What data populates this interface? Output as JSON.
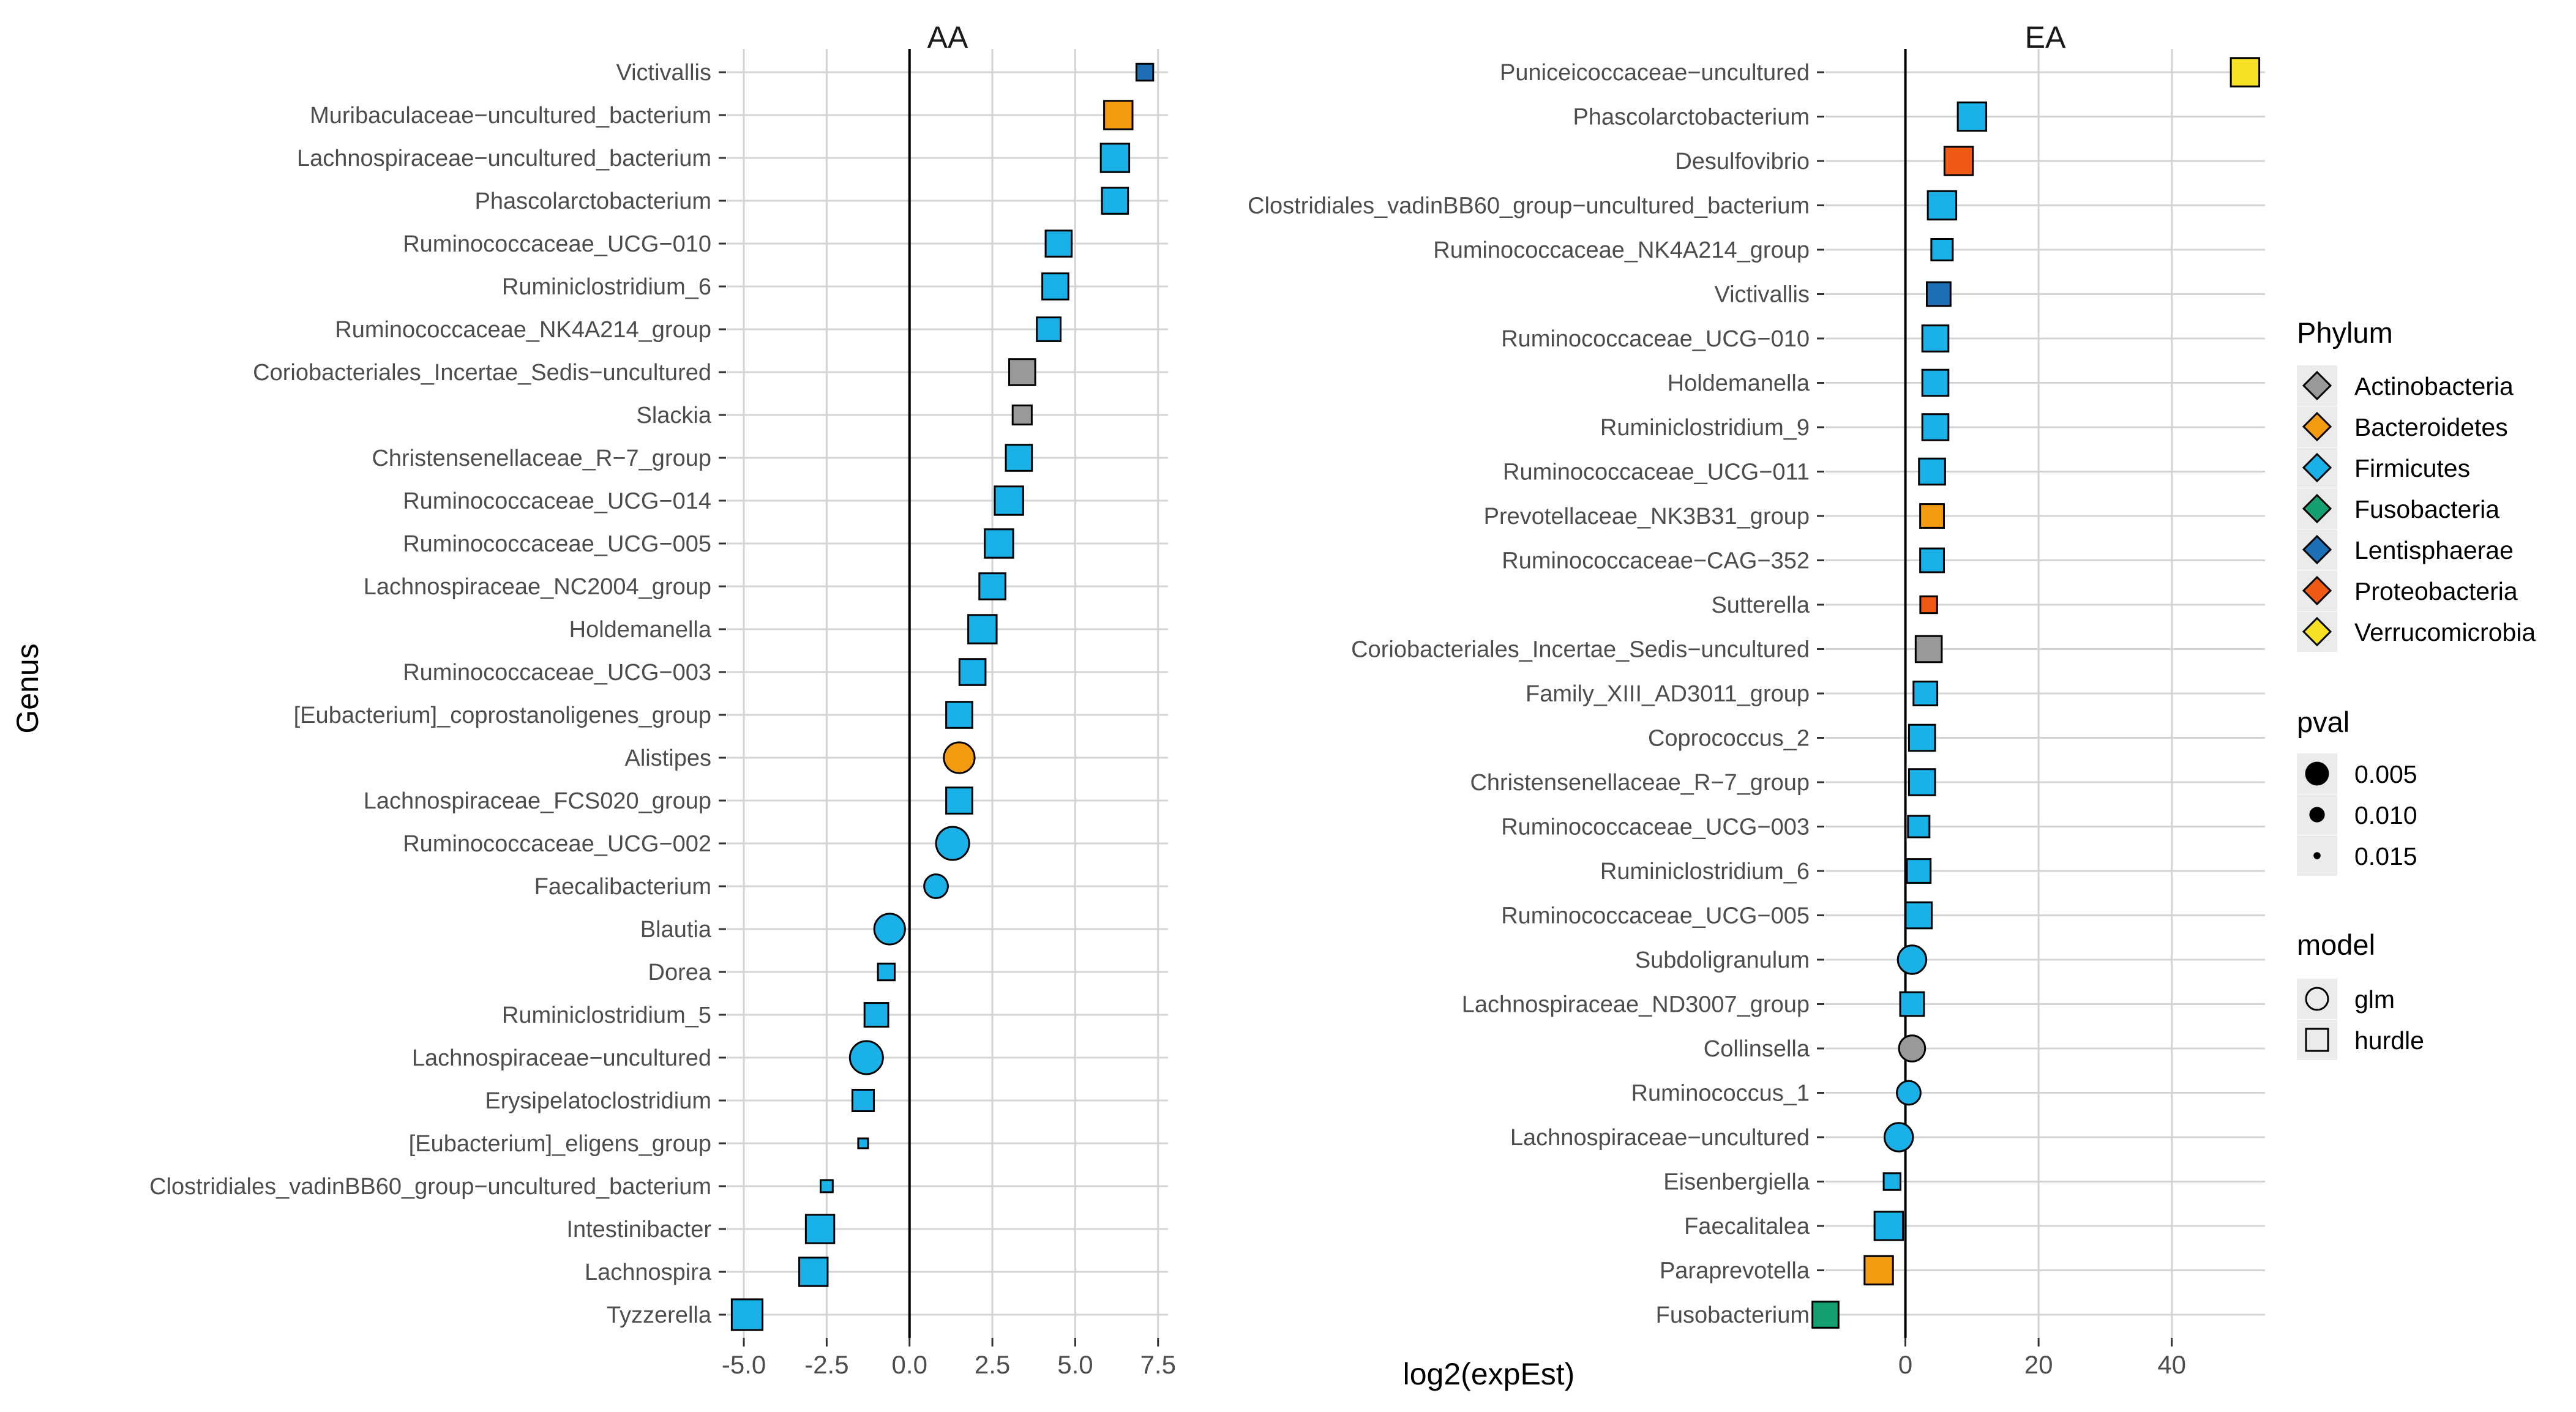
{
  "x_axis_title": "log2(expEst)",
  "y_axis_title": "Genus",
  "colors": {
    "Actinobacteria": "#999999",
    "Bacteroidetes": "#F39C12",
    "Firmicutes": "#1AB0E8",
    "Fusobacteria": "#16A070",
    "Lentisphaerae": "#1F6FB5",
    "Proteobacteria": "#F05A14",
    "Verrucomicrobia": "#F7E125"
  },
  "legend": {
    "phylum_title": "Phylum",
    "phylum_items": [
      "Actinobacteria",
      "Bacteroidetes",
      "Firmicutes",
      "Fusobacteria",
      "Lentisphaerae",
      "Proteobacteria",
      "Verrucomicrobia"
    ],
    "pval_title": "pval",
    "pval_items": [
      "0.005",
      "0.010",
      "0.015"
    ],
    "model_title": "model",
    "model_items": [
      "glm",
      "hurdle"
    ]
  },
  "chart_data": [
    {
      "type": "scatter",
      "title": "AA",
      "xlabel": "log2(expEst)",
      "ylabel": "Genus",
      "xlim": [
        -5.5,
        7.8
      ],
      "xticks": [
        "-5.0",
        "-2.5",
        "0.0",
        "2.5",
        "5.0",
        "7.5"
      ],
      "xtick_values": [
        -5,
        -2.5,
        0,
        2.5,
        5,
        7.5
      ],
      "grid": true,
      "points": [
        {
          "genus": "Victivallis",
          "x": 7.1,
          "phylum": "Lentisphaerae",
          "model": "hurdle",
          "pval": 0.012
        },
        {
          "genus": "Muribaculaceae−uncultured_bacterium",
          "x": 6.3,
          "phylum": "Bacteroidetes",
          "model": "hurdle",
          "pval": 0.007
        },
        {
          "genus": "Lachnospiraceae−uncultured_bacterium",
          "x": 6.2,
          "phylum": "Firmicutes",
          "model": "hurdle",
          "pval": 0.007
        },
        {
          "genus": "Phascolarctobacterium",
          "x": 6.2,
          "phylum": "Firmicutes",
          "model": "hurdle",
          "pval": 0.008
        },
        {
          "genus": "Ruminococcaceae_UCG−010",
          "x": 4.5,
          "phylum": "Firmicutes",
          "model": "hurdle",
          "pval": 0.008
        },
        {
          "genus": "Ruminiclostridium_6",
          "x": 4.4,
          "phylum": "Firmicutes",
          "model": "hurdle",
          "pval": 0.008
        },
        {
          "genus": "Ruminococcaceae_NK4A214_group",
          "x": 4.2,
          "phylum": "Firmicutes",
          "model": "hurdle",
          "pval": 0.009
        },
        {
          "genus": "Coriobacteriales_Incertae_Sedis−uncultured",
          "x": 3.4,
          "phylum": "Actinobacteria",
          "model": "hurdle",
          "pval": 0.008
        },
        {
          "genus": "Slackia",
          "x": 3.4,
          "phylum": "Actinobacteria",
          "model": "hurdle",
          "pval": 0.011
        },
        {
          "genus": "Christensenellaceae_R−7_group",
          "x": 3.3,
          "phylum": "Firmicutes",
          "model": "hurdle",
          "pval": 0.008
        },
        {
          "genus": "Ruminococcaceae_UCG−014",
          "x": 3.0,
          "phylum": "Firmicutes",
          "model": "hurdle",
          "pval": 0.007
        },
        {
          "genus": "Ruminococcaceae_UCG−005",
          "x": 2.7,
          "phylum": "Firmicutes",
          "model": "hurdle",
          "pval": 0.007
        },
        {
          "genus": "Lachnospiraceae_NC2004_group",
          "x": 2.5,
          "phylum": "Firmicutes",
          "model": "hurdle",
          "pval": 0.008
        },
        {
          "genus": "Holdemanella",
          "x": 2.2,
          "phylum": "Firmicutes",
          "model": "hurdle",
          "pval": 0.007
        },
        {
          "genus": "Ruminococcaceae_UCG−003",
          "x": 1.9,
          "phylum": "Firmicutes",
          "model": "hurdle",
          "pval": 0.008
        },
        {
          "genus": "[Eubacterium]_coprostanoligenes_group",
          "x": 1.5,
          "phylum": "Firmicutes",
          "model": "hurdle",
          "pval": 0.008
        },
        {
          "genus": "Alistipes",
          "x": 1.5,
          "phylum": "Bacteroidetes",
          "model": "glm",
          "pval": 0.006
        },
        {
          "genus": "Lachnospiraceae_FCS020_group",
          "x": 1.5,
          "phylum": "Firmicutes",
          "model": "hurdle",
          "pval": 0.008
        },
        {
          "genus": "Ruminococcaceae_UCG−002",
          "x": 1.3,
          "phylum": "Firmicutes",
          "model": "glm",
          "pval": 0.005
        },
        {
          "genus": "Faecalibacterium",
          "x": 0.8,
          "phylum": "Firmicutes",
          "model": "glm",
          "pval": 0.009
        },
        {
          "genus": "Blautia",
          "x": -0.6,
          "phylum": "Firmicutes",
          "model": "glm",
          "pval": 0.006
        },
        {
          "genus": "Dorea",
          "x": -0.7,
          "phylum": "Firmicutes",
          "model": "hurdle",
          "pval": 0.012
        },
        {
          "genus": "Ruminiclostridium_5",
          "x": -1.0,
          "phylum": "Firmicutes",
          "model": "hurdle",
          "pval": 0.009
        },
        {
          "genus": "Lachnospiraceae−uncultured",
          "x": -1.3,
          "phylum": "Firmicutes",
          "model": "glm",
          "pval": 0.005
        },
        {
          "genus": "Erysipelatoclostridium",
          "x": -1.4,
          "phylum": "Firmicutes",
          "model": "hurdle",
          "pval": 0.01
        },
        {
          "genus": "[Eubacterium]_eligens_group",
          "x": -1.4,
          "phylum": "Firmicutes",
          "model": "hurdle",
          "pval": 0.015
        },
        {
          "genus": "Clostridiales_vadinBB60_group−uncultured_bacterium",
          "x": -2.5,
          "phylum": "Firmicutes",
          "model": "hurdle",
          "pval": 0.014
        },
        {
          "genus": "Intestinibacter",
          "x": -2.7,
          "phylum": "Firmicutes",
          "model": "hurdle",
          "pval": 0.007
        },
        {
          "genus": "Lachnospira",
          "x": -2.9,
          "phylum": "Firmicutes",
          "model": "hurdle",
          "pval": 0.007
        },
        {
          "genus": "Tyzzerella",
          "x": -4.9,
          "phylum": "Firmicutes",
          "model": "hurdle",
          "pval": 0.006
        }
      ]
    },
    {
      "type": "scatter",
      "title": "EA",
      "xlabel": "log2(expEst)",
      "ylabel": "Genus",
      "xlim": [
        -12,
        54
      ],
      "xticks": [
        "0",
        "20",
        "40"
      ],
      "xtick_values": [
        0,
        20,
        40
      ],
      "grid": true,
      "points": [
        {
          "genus": "Puniceicoccaceae−uncultured",
          "x": 51,
          "phylum": "Verrucomicrobia",
          "model": "hurdle",
          "pval": 0.007
        },
        {
          "genus": "Phascolarctobacterium",
          "x": 10,
          "phylum": "Firmicutes",
          "model": "hurdle",
          "pval": 0.007
        },
        {
          "genus": "Desulfovibrio",
          "x": 8,
          "phylum": "Proteobacteria",
          "model": "hurdle",
          "pval": 0.007
        },
        {
          "genus": "Clostridiales_vadinBB60_group−uncultured_bacterium",
          "x": 5.5,
          "phylum": "Firmicutes",
          "model": "hurdle",
          "pval": 0.007
        },
        {
          "genus": "Ruminococcaceae_NK4A214_group",
          "x": 5.5,
          "phylum": "Firmicutes",
          "model": "hurdle",
          "pval": 0.01
        },
        {
          "genus": "Victivallis",
          "x": 5,
          "phylum": "Lentisphaerae",
          "model": "hurdle",
          "pval": 0.009
        },
        {
          "genus": "Ruminococcaceae_UCG−010",
          "x": 4.5,
          "phylum": "Firmicutes",
          "model": "hurdle",
          "pval": 0.008
        },
        {
          "genus": "Holdemanella",
          "x": 4.5,
          "phylum": "Firmicutes",
          "model": "hurdle",
          "pval": 0.008
        },
        {
          "genus": "Ruminiclostridium_9",
          "x": 4.5,
          "phylum": "Firmicutes",
          "model": "hurdle",
          "pval": 0.008
        },
        {
          "genus": "Ruminococcaceae_UCG−011",
          "x": 4,
          "phylum": "Firmicutes",
          "model": "hurdle",
          "pval": 0.008
        },
        {
          "genus": "Prevotellaceae_NK3B31_group",
          "x": 4,
          "phylum": "Bacteroidetes",
          "model": "hurdle",
          "pval": 0.009
        },
        {
          "genus": "Ruminococcaceae−CAG−352",
          "x": 4,
          "phylum": "Firmicutes",
          "model": "hurdle",
          "pval": 0.009
        },
        {
          "genus": "Sutterella",
          "x": 3.5,
          "phylum": "Proteobacteria",
          "model": "hurdle",
          "pval": 0.012
        },
        {
          "genus": "Coriobacteriales_Incertae_Sedis−uncultured",
          "x": 3.5,
          "phylum": "Actinobacteria",
          "model": "hurdle",
          "pval": 0.008
        },
        {
          "genus": "Family_XIII_AD3011_group",
          "x": 3,
          "phylum": "Firmicutes",
          "model": "hurdle",
          "pval": 0.009
        },
        {
          "genus": "Coprococcus_2",
          "x": 2.5,
          "phylum": "Firmicutes",
          "model": "hurdle",
          "pval": 0.008
        },
        {
          "genus": "Christensenellaceae_R−7_group",
          "x": 2.5,
          "phylum": "Firmicutes",
          "model": "hurdle",
          "pval": 0.008
        },
        {
          "genus": "Ruminococcaceae_UCG−003",
          "x": 2,
          "phylum": "Firmicutes",
          "model": "hurdle",
          "pval": 0.01
        },
        {
          "genus": "Ruminiclostridium_6",
          "x": 2,
          "phylum": "Firmicutes",
          "model": "hurdle",
          "pval": 0.009
        },
        {
          "genus": "Ruminococcaceae_UCG−005",
          "x": 2,
          "phylum": "Firmicutes",
          "model": "hurdle",
          "pval": 0.008
        },
        {
          "genus": "Subdoligranulum",
          "x": 1,
          "phylum": "Firmicutes",
          "model": "glm",
          "pval": 0.007
        },
        {
          "genus": "Lachnospiraceae_ND3007_group",
          "x": 1,
          "phylum": "Firmicutes",
          "model": "hurdle",
          "pval": 0.009
        },
        {
          "genus": "Collinsella",
          "x": 1,
          "phylum": "Actinobacteria",
          "model": "glm",
          "pval": 0.008
        },
        {
          "genus": "Ruminococcus_1",
          "x": 0.5,
          "phylum": "Firmicutes",
          "model": "glm",
          "pval": 0.009
        },
        {
          "genus": "Lachnospiraceae−uncultured",
          "x": -1,
          "phylum": "Firmicutes",
          "model": "glm",
          "pval": 0.007
        },
        {
          "genus": "Eisenbergiella",
          "x": -2,
          "phylum": "Firmicutes",
          "model": "hurdle",
          "pval": 0.012
        },
        {
          "genus": "Faecalitalea",
          "x": -2.5,
          "phylum": "Firmicutes",
          "model": "hurdle",
          "pval": 0.007
        },
        {
          "genus": "Paraprevotella",
          "x": -4,
          "phylum": "Bacteroidetes",
          "model": "hurdle",
          "pval": 0.007
        },
        {
          "genus": "Fusobacterium",
          "x": -12,
          "phylum": "Fusobacteria",
          "model": "hurdle",
          "pval": 0.008
        }
      ]
    }
  ]
}
